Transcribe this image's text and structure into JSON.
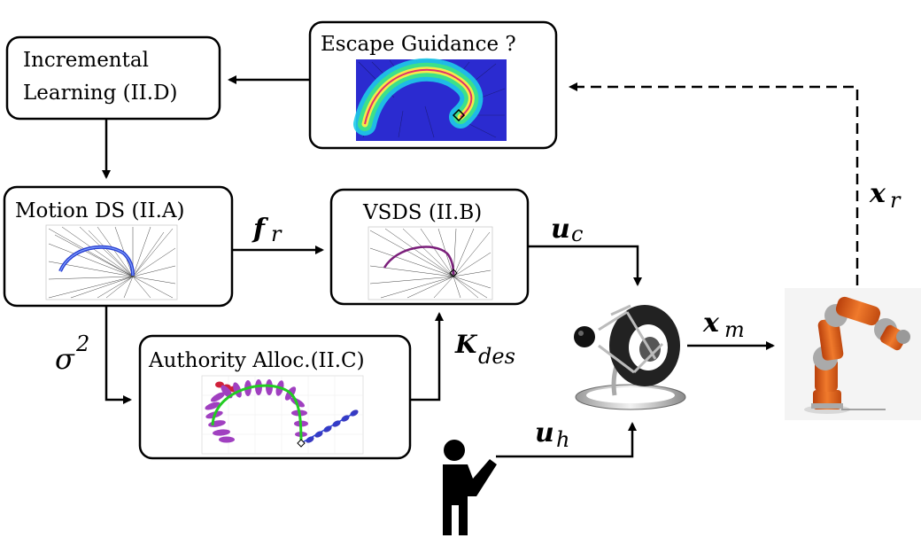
{
  "boxes": {
    "incremental_learning": {
      "line1": "Incremental",
      "line2": "Learning (II.D)"
    },
    "escape_guidance": {
      "title": "Escape Guidance ?"
    },
    "motion_ds": {
      "title": "Motion DS (II.A)"
    },
    "vsds": {
      "title": "VSDS (II.B)"
    },
    "authority_alloc": {
      "title": "Authority Alloc.(II.C)"
    }
  },
  "signals": {
    "f_r": {
      "symbol": "f",
      "sub": "r"
    },
    "u_c": {
      "symbol": "u",
      "sub": "c"
    },
    "sigma2": {
      "symbol": "σ",
      "sup": "2"
    },
    "k_des": {
      "symbol": "K",
      "sub": "des"
    },
    "x_m": {
      "symbol": "x",
      "sub": "m"
    },
    "x_r": {
      "symbol": "x",
      "sub": "r"
    },
    "u_h": {
      "symbol": "u",
      "sub": "h"
    }
  },
  "colors": {
    "box_stroke": "#000000",
    "arrow": "#000000",
    "robot_orange": "#e8641e",
    "heatmap_bg": "#2b2bd0",
    "trajectory_blue": "#2a3fd1",
    "trajectory_purple": "#7b1f7b",
    "trajectory_green": "#22cc22",
    "ellipse_purple": "#a040c0",
    "ellipse_red": "#d0203a",
    "ellipse_blue": "#3a3ac0"
  },
  "icons": [
    "haptic-device-icon",
    "robot-arm-icon",
    "human-operator-icon"
  ]
}
